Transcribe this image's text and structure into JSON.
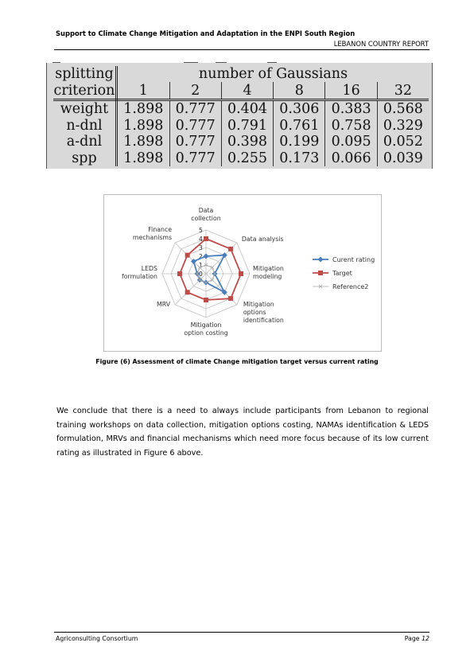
{
  "header": {
    "title": "Support to Climate Change Mitigation and Adaptation in the ENPI South Region",
    "report": "LEBANON COUNTRY REPORT"
  },
  "table": {
    "head_col_line1": "splitting",
    "head_col_line2": "criterion",
    "group_label": "number of Gaussians",
    "columns": [
      "1",
      "2",
      "4",
      "8",
      "16",
      "32"
    ],
    "rows": [
      {
        "label": "weight",
        "values": [
          "1.898",
          "0.777",
          "0.404",
          "0.306",
          "0.383",
          "0.568"
        ]
      },
      {
        "label": "n-dnl",
        "values": [
          "1.898",
          "0.777",
          "0.791",
          "0.761",
          "0.758",
          "0.329"
        ]
      },
      {
        "label": "a-dnl",
        "values": [
          "1.898",
          "0.777",
          "0.398",
          "0.199",
          "0.095",
          "0.052"
        ]
      },
      {
        "label": "spp",
        "values": [
          "1.898",
          "0.777",
          "0.255",
          "0.173",
          "0.066",
          "0.039"
        ]
      }
    ]
  },
  "chart_data": {
    "type": "radar",
    "categories": [
      [
        "Data",
        "collection"
      ],
      [
        "Data analysis"
      ],
      [
        "Mitigation",
        "modeling"
      ],
      [
        "Mitigation",
        "options",
        "identification"
      ],
      [
        "Mitigation",
        "option costing"
      ],
      [
        "MRV"
      ],
      [
        "LEDS",
        "formulation"
      ],
      [
        "Finance",
        "mechanisms"
      ]
    ],
    "ticks": [
      "0",
      "1",
      "2",
      "3",
      "4",
      "5"
    ],
    "rmax": 5,
    "series": [
      {
        "name": "Curent rating",
        "color": "#4a7ebb",
        "marker": "diamond",
        "values": [
          2,
          3,
          1,
          3,
          1,
          1,
          1,
          2
        ]
      },
      {
        "name": "Target",
        "color": "#be4b48",
        "marker": "square",
        "values": [
          4,
          4,
          4,
          4,
          3,
          3,
          3,
          3
        ]
      },
      {
        "name": "Reference2",
        "color": "#a6a6a6",
        "marker": "x",
        "values": [
          1,
          1,
          1,
          1,
          1,
          1,
          1,
          1
        ]
      }
    ],
    "legend": "right"
  },
  "caption": "Figure (6) Assessment of climate Change mitigation target versus current rating",
  "paragraph": "We conclude that there is a need to always include participants from Lebanon to regional training workshops on data collection, mitigation options costing, NAMAs identification & LEDS formulation, MRVs and financial mechanisms which need more focus because of its low current rating as illustrated in Figure 6 above.",
  "footer": {
    "left": "Agriconsulting Consortium",
    "page_label": "Page",
    "page_number": "12"
  }
}
